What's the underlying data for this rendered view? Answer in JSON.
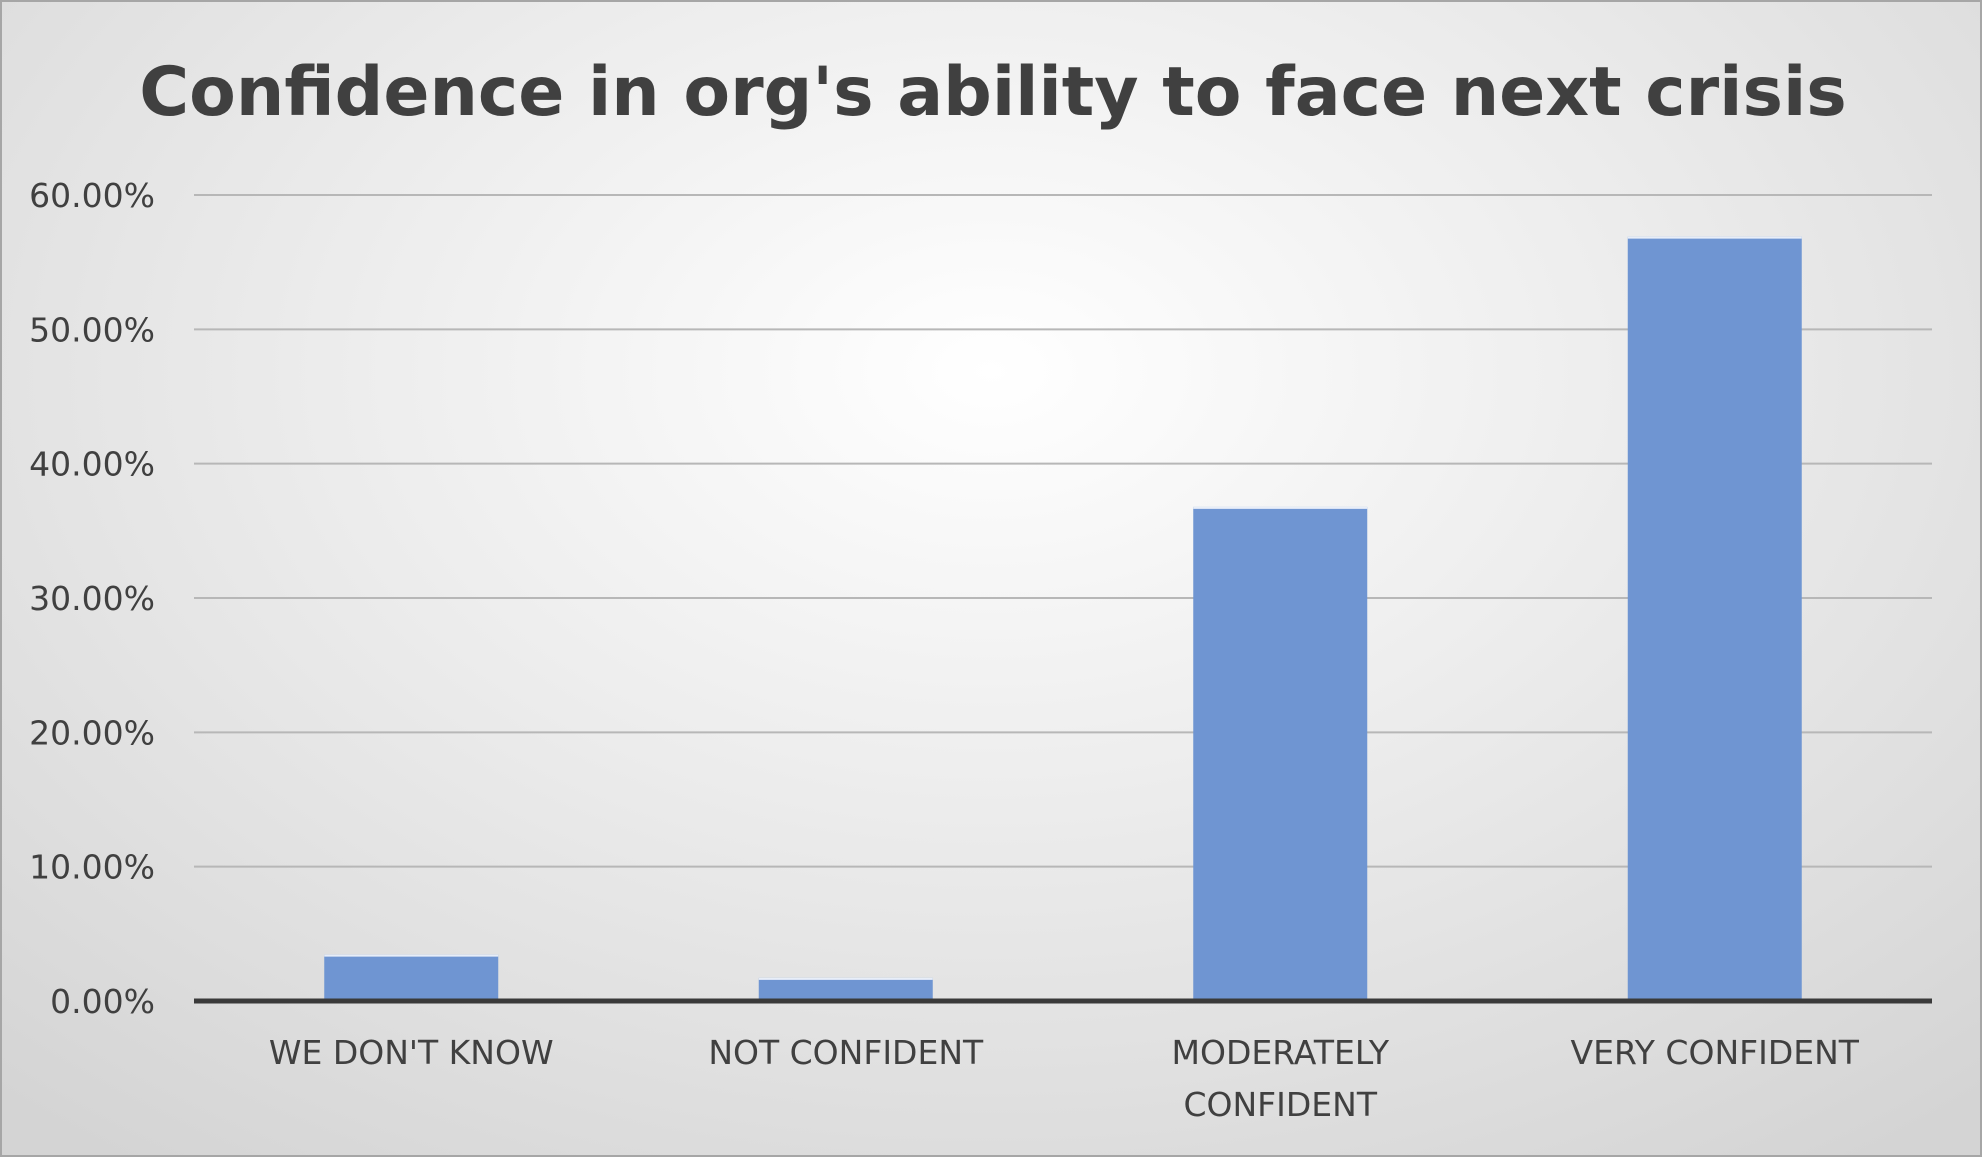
{
  "chart_data": {
    "type": "bar",
    "title": "Confidence in org's ability to face next crisis",
    "xlabel": "",
    "ylabel": "",
    "categories": [
      [
        "WE DON'T KNOW"
      ],
      [
        "NOT CONFIDENT"
      ],
      [
        "MODERATELY",
        "CONFIDENT"
      ],
      [
        "VERY CONFIDENT"
      ]
    ],
    "values": [
      0.0345,
      0.0172,
      0.3678,
      0.569
    ],
    "ylim": [
      0,
      0.6
    ],
    "y_ticks": [
      {
        "value": 0.0,
        "label": "0.00%"
      },
      {
        "value": 0.1,
        "label": "10.00%"
      },
      {
        "value": 0.2,
        "label": "20.00%"
      },
      {
        "value": 0.3,
        "label": "30.00%"
      },
      {
        "value": 0.4,
        "label": "40.00%"
      },
      {
        "value": 0.5,
        "label": "50.00%"
      },
      {
        "value": 0.6,
        "label": "60.00%"
      }
    ],
    "grid": true,
    "legend": "none",
    "colors": {
      "bar": "#6f95d2",
      "gridline": "#b7b7b7",
      "axis": "#3a3a3a",
      "text": "#404040"
    }
  }
}
